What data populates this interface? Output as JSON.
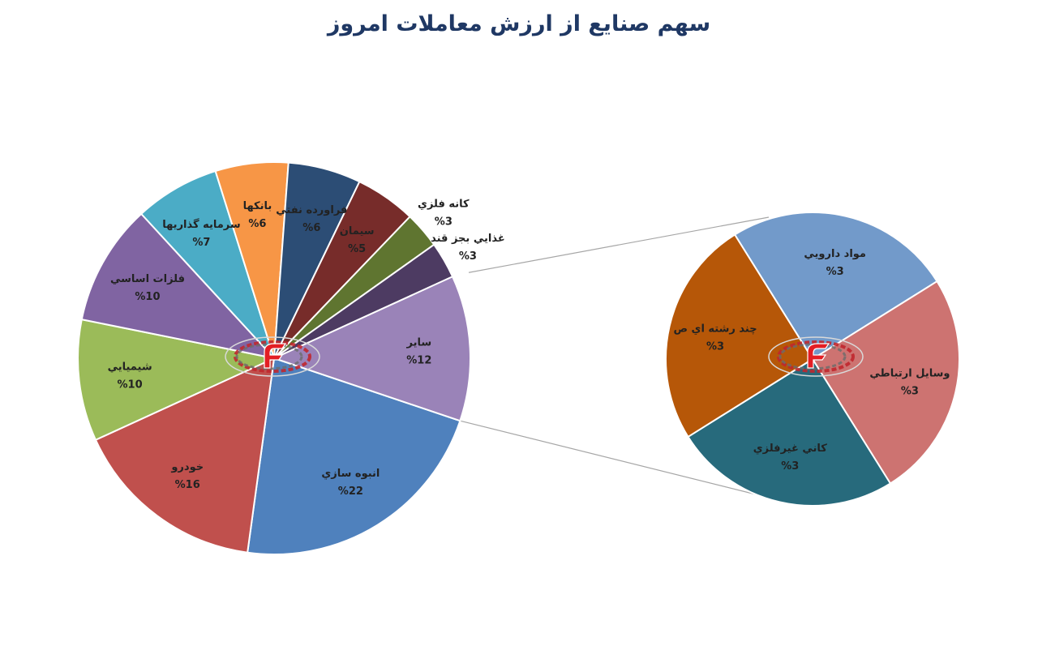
{
  "chart_data": {
    "type": "pie",
    "title": "سهم صنایع از ارزش معاملات امروز",
    "main_pie": {
      "slices": [
        {
          "name": "انبوه سازي",
          "value": 22,
          "label": "%22",
          "color": "#4f81bd"
        },
        {
          "name": "خودرو",
          "value": 16,
          "label": "%16",
          "color": "#c0504d"
        },
        {
          "name": "شيميايي",
          "value": 10,
          "label": "%10",
          "color": "#9bbb59"
        },
        {
          "name": "فلزات اساسي",
          "value": 10,
          "label": "%10",
          "color": "#8064a2"
        },
        {
          "name": "سرمايه گذاريها",
          "value": 7,
          "label": "%7",
          "color": "#4bacc6"
        },
        {
          "name": "بانكها",
          "value": 6,
          "label": "%6",
          "color": "#f79646"
        },
        {
          "name": "فراورده نفتي",
          "value": 6,
          "label": "%6",
          "color": "#2c4d75"
        },
        {
          "name": "سيمان",
          "value": 5,
          "label": "%5",
          "color": "#772c2a"
        },
        {
          "name": "كانه فلزي",
          "value": 3,
          "label": "%3",
          "color": "#5f7530"
        },
        {
          "name": "غذايي بجز قند",
          "value": 3,
          "label": "%3",
          "color": "#4d3b62"
        },
        {
          "name": "ساير",
          "value": 12,
          "label": "%12",
          "color": "#9a83b8"
        }
      ]
    },
    "secondary_pie": {
      "source_slice": "ساير",
      "slices": [
        {
          "name": "مواد دارويي",
          "value": 3,
          "label": "%3",
          "color": "#729aca"
        },
        {
          "name": "وسايل ارتباطي",
          "value": 3,
          "label": "%3",
          "color": "#cd7371"
        },
        {
          "name": "كاني غيرفلزي",
          "value": 3,
          "label": "%3",
          "color": "#276a7c"
        },
        {
          "name": "چند رشته اي ص",
          "value": 3,
          "label": "%3",
          "color": "#b65708"
        }
      ]
    }
  }
}
